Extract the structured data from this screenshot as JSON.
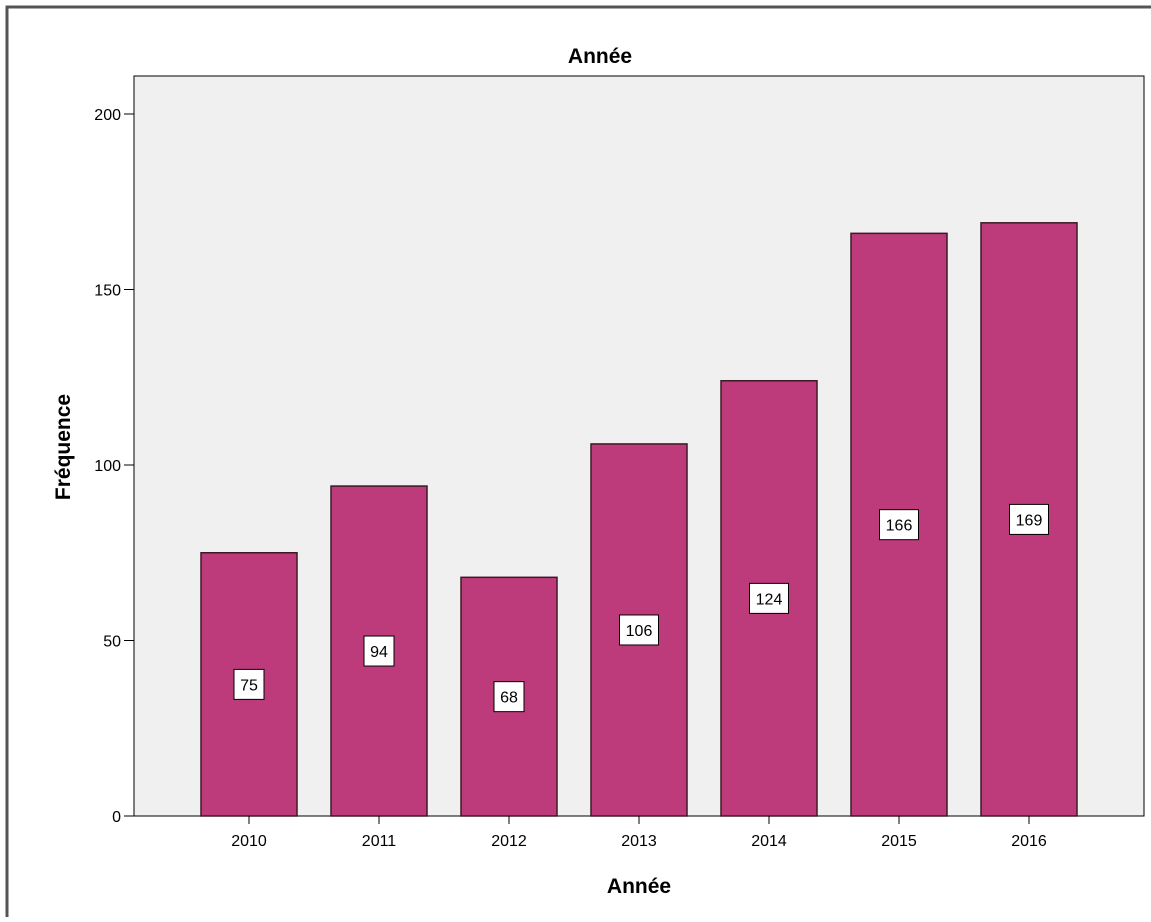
{
  "chart_data": {
    "type": "bar",
    "title": "Année",
    "xlabel": "Année",
    "ylabel": "Fréquence",
    "categories": [
      "2010",
      "2011",
      "2012",
      "2013",
      "2014",
      "2015",
      "2016"
    ],
    "values": [
      75,
      94,
      68,
      106,
      124,
      166,
      169
    ],
    "data_labels": [
      "75",
      "94",
      "68",
      "106",
      "124",
      "166",
      "169"
    ],
    "ylim": [
      0,
      210
    ],
    "yticks": [
      0,
      50,
      100,
      150,
      200
    ],
    "ytick_labels": [
      "0",
      "50",
      "100",
      "150",
      "200"
    ],
    "grid": false,
    "legend": "none",
    "colors": {
      "bar_fill": "#be3b7b",
      "bar_stroke": "#3b1a26",
      "plot_background": "#f0f0f0",
      "axis": "#000000",
      "label_box": "#ffffff"
    }
  }
}
